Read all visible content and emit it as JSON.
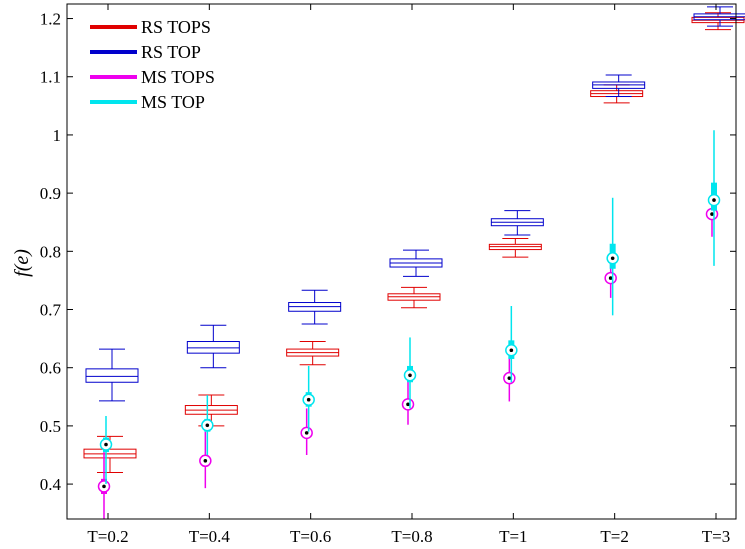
{
  "chart_data": {
    "type": "box",
    "ylabel": "f(e)",
    "categories": [
      "T=0.2",
      "T=0.4",
      "T=0.6",
      "T=0.8",
      "T=1",
      "T=2",
      "T=3"
    ],
    "ylim": [
      0.34,
      1.225
    ],
    "yticks": [
      0.4,
      0.5,
      0.6,
      0.7,
      0.8,
      0.9,
      1,
      1.1,
      1.2
    ],
    "ytick_labels": [
      "0.4",
      "0.5",
      "0.6",
      "0.7",
      "0.8",
      "0.9",
      "1",
      "1.1",
      "1.2"
    ],
    "grid": false,
    "legend_position": "top-left",
    "series": [
      {
        "name": "RS TOPS",
        "color": "#e00000",
        "style": "box",
        "boxes": [
          {
            "whisker_low": 0.42,
            "q1": 0.445,
            "median": 0.452,
            "q3": 0.46,
            "whisker_high": 0.482
          },
          {
            "whisker_low": 0.5,
            "q1": 0.52,
            "median": 0.527,
            "q3": 0.535,
            "whisker_high": 0.553
          },
          {
            "whisker_low": 0.605,
            "q1": 0.62,
            "median": 0.626,
            "q3": 0.632,
            "whisker_high": 0.645
          },
          {
            "whisker_low": 0.703,
            "q1": 0.716,
            "median": 0.722,
            "q3": 0.727,
            "whisker_high": 0.738
          },
          {
            "whisker_low": 0.79,
            "q1": 0.803,
            "median": 0.808,
            "q3": 0.812,
            "whisker_high": 0.822
          },
          {
            "whisker_low": 1.055,
            "q1": 1.066,
            "median": 1.071,
            "q3": 1.076,
            "whisker_high": 1.086
          },
          {
            "whisker_low": 1.181,
            "q1": 1.193,
            "median": 1.197,
            "q3": 1.202,
            "whisker_high": 1.21
          }
        ]
      },
      {
        "name": "RS TOP",
        "color": "#0000cc",
        "style": "box",
        "boxes": [
          {
            "whisker_low": 0.543,
            "q1": 0.575,
            "median": 0.585,
            "q3": 0.598,
            "whisker_high": 0.632
          },
          {
            "whisker_low": 0.6,
            "q1": 0.625,
            "median": 0.634,
            "q3": 0.645,
            "whisker_high": 0.673
          },
          {
            "whisker_low": 0.675,
            "q1": 0.697,
            "median": 0.705,
            "q3": 0.712,
            "whisker_high": 0.733
          },
          {
            "whisker_low": 0.757,
            "q1": 0.773,
            "median": 0.78,
            "q3": 0.787,
            "whisker_high": 0.802
          },
          {
            "whisker_low": 0.828,
            "q1": 0.844,
            "median": 0.85,
            "q3": 0.856,
            "whisker_high": 0.87
          },
          {
            "whisker_low": 1.066,
            "q1": 1.08,
            "median": 1.086,
            "q3": 1.091,
            "whisker_high": 1.103
          },
          {
            "whisker_low": 1.187,
            "q1": 1.198,
            "median": 1.203,
            "q3": 1.208,
            "whisker_high": 1.22
          }
        ]
      },
      {
        "name": "MS TOPS",
        "color": "#ee00ee",
        "style": "compact",
        "boxes": [
          {
            "whisker_low": 0.34,
            "q1": 0.383,
            "median": 0.396,
            "q3": 0.409,
            "whisker_high": 0.455
          },
          {
            "whisker_low": 0.393,
            "q1": 0.43,
            "median": 0.44,
            "q3": 0.45,
            "whisker_high": 0.49
          },
          {
            "whisker_low": 0.45,
            "q1": 0.48,
            "median": 0.488,
            "q3": 0.497,
            "whisker_high": 0.53
          },
          {
            "whisker_low": 0.502,
            "q1": 0.53,
            "median": 0.537,
            "q3": 0.545,
            "whisker_high": 0.577
          },
          {
            "whisker_low": 0.542,
            "q1": 0.573,
            "median": 0.582,
            "q3": 0.59,
            "whisker_high": 0.625
          },
          {
            "whisker_low": 0.72,
            "q1": 0.745,
            "median": 0.754,
            "q3": 0.763,
            "whisker_high": 0.792
          },
          {
            "whisker_low": 0.825,
            "q1": 0.855,
            "median": 0.864,
            "q3": 0.873,
            "whisker_high": 0.91
          }
        ]
      },
      {
        "name": "MS TOP",
        "color": "#00e5ee",
        "style": "compact",
        "boxes": [
          {
            "whisker_low": 0.4,
            "q1": 0.455,
            "median": 0.468,
            "q3": 0.48,
            "whisker_high": 0.517
          },
          {
            "whisker_low": 0.45,
            "q1": 0.49,
            "median": 0.501,
            "q3": 0.512,
            "whisker_high": 0.553
          },
          {
            "whisker_low": 0.49,
            "q1": 0.533,
            "median": 0.545,
            "q3": 0.558,
            "whisker_high": 0.603
          },
          {
            "whisker_low": 0.53,
            "q1": 0.575,
            "median": 0.587,
            "q3": 0.603,
            "whisker_high": 0.652
          },
          {
            "whisker_low": 0.575,
            "q1": 0.615,
            "median": 0.63,
            "q3": 0.647,
            "whisker_high": 0.706
          },
          {
            "whisker_low": 0.69,
            "q1": 0.77,
            "median": 0.788,
            "q3": 0.813,
            "whisker_high": 0.892
          },
          {
            "whisker_low": 0.775,
            "q1": 0.87,
            "median": 0.888,
            "q3": 0.918,
            "whisker_high": 1.008
          }
        ]
      }
    ]
  }
}
